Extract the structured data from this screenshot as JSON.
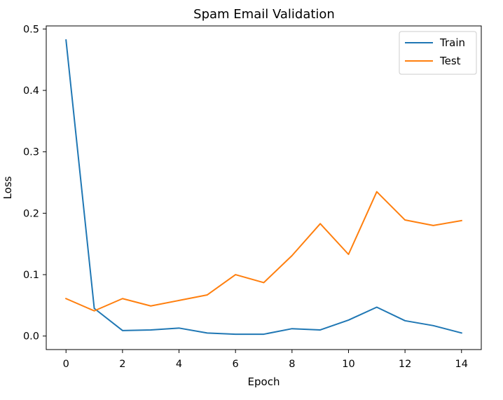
{
  "chart_data": {
    "type": "line",
    "title": "Spam Email Validation",
    "xlabel": "Epoch",
    "ylabel": "Loss",
    "x": [
      0,
      1,
      2,
      3,
      4,
      5,
      6,
      7,
      8,
      9,
      10,
      11,
      12,
      13,
      14
    ],
    "series": [
      {
        "name": "Train",
        "color": "#1f77b4",
        "values": [
          0.482,
          0.045,
          0.009,
          0.01,
          0.013,
          0.005,
          0.003,
          0.003,
          0.012,
          0.01,
          0.026,
          0.047,
          0.025,
          0.017,
          0.005
        ]
      },
      {
        "name": "Test",
        "color": "#ff7f0e",
        "values": [
          0.061,
          0.041,
          0.061,
          0.049,
          0.058,
          0.067,
          0.1,
          0.087,
          0.131,
          0.183,
          0.133,
          0.235,
          0.189,
          0.18,
          0.188
        ]
      }
    ],
    "xlim": [
      -0.7,
      14.7
    ],
    "ylim": [
      -0.022,
      0.505
    ],
    "xticks": [
      0,
      2,
      4,
      6,
      8,
      10,
      12,
      14
    ],
    "yticks": [
      0.0,
      0.1,
      0.2,
      0.3,
      0.4,
      0.5
    ],
    "ytick_labels": [
      "0.0",
      "0.1",
      "0.2",
      "0.3",
      "0.4",
      "0.5"
    ],
    "grid": false,
    "legend_position": "top-right"
  }
}
